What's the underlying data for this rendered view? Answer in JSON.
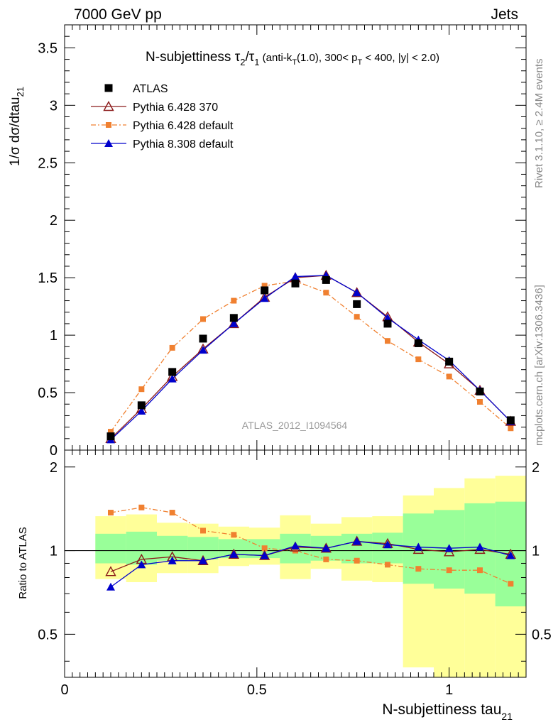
{
  "header": {
    "left": "7000 GeV pp",
    "right": "Jets"
  },
  "side_labels": {
    "rivet": "Rivet 3.1.10, ≥ 2.4M events",
    "mcplots": "mcplots.cern.ch [arXiv:1306.3436]"
  },
  "watermark": "ATLAS_2012_I1094564",
  "chart_data": [
    {
      "type": "scatter",
      "panel": "main",
      "title_main": "N-subjettiness τ",
      "title_sub2": "2",
      "title_slash": "/τ",
      "title_sub1": "1",
      "title_rest_a": " (anti-k",
      "title_sub_t": "T",
      "title_rest_b": "(1.0), 300< p",
      "title_sub_t2": "T",
      "title_rest_c": " < 400, |y| < 2.0)",
      "ylabel": "1/σ dσ/dtau",
      "ylabel_sub": "21",
      "xlim": [
        0,
        1.2
      ],
      "ylim": [
        0,
        3.7
      ],
      "yticks": [
        0,
        0.5,
        1,
        1.5,
        2,
        2.5,
        3,
        3.5
      ],
      "ytick_labels": [
        "0",
        "0.5",
        "1",
        "1.5",
        "2",
        "2.5",
        "3",
        "3.5"
      ],
      "x": [
        0.12,
        0.2,
        0.28,
        0.36,
        0.44,
        0.52,
        0.6,
        0.68,
        0.76,
        0.84,
        0.92,
        1.0,
        1.08,
        1.16
      ],
      "legend_position": "top-left",
      "series": [
        {
          "name": "ATLAS",
          "color": "#000000",
          "marker": "square",
          "values": [
            0.12,
            0.39,
            0.68,
            0.97,
            1.15,
            1.39,
            1.45,
            1.48,
            1.27,
            1.1,
            0.93,
            0.77,
            0.51,
            0.26
          ]
        },
        {
          "name": "Pythia 6.428 370",
          "color": "#8b1a1a",
          "marker": "open-triangle",
          "values": [
            0.1,
            0.36,
            0.64,
            0.88,
            1.1,
            1.33,
            1.5,
            1.52,
            1.37,
            1.16,
            0.94,
            0.75,
            0.52,
            0.25
          ]
        },
        {
          "name": "Pythia 6.428 default",
          "color": "#f08030",
          "marker": "small-square",
          "dashed": true,
          "values": [
            0.16,
            0.53,
            0.89,
            1.14,
            1.3,
            1.43,
            1.47,
            1.37,
            1.16,
            0.95,
            0.79,
            0.64,
            0.42,
            0.19
          ]
        },
        {
          "name": "Pythia 8.308 default",
          "color": "#0000cc",
          "marker": "triangle",
          "values": [
            0.09,
            0.34,
            0.62,
            0.87,
            1.1,
            1.32,
            1.51,
            1.52,
            1.37,
            1.15,
            0.96,
            0.78,
            0.52,
            0.25
          ]
        }
      ]
    },
    {
      "type": "line",
      "panel": "ratio",
      "ylabel": "Ratio to ATLAS",
      "xlabel": "N-subjettiness tau",
      "xlabel_sub": "21",
      "xlim": [
        0,
        1.2
      ],
      "ylim": [
        0.35,
        2.3
      ],
      "log_y": true,
      "yticks_labeled": [
        0.5,
        1,
        2
      ],
      "ytick_labels": [
        "0.5",
        "1",
        "2"
      ],
      "xticks": [
        0,
        0.5,
        1
      ],
      "xtick_labels": [
        "0",
        "0.5",
        "1"
      ],
      "bins": [
        [
          0.08,
          0.16
        ],
        [
          0.16,
          0.24
        ],
        [
          0.24,
          0.32
        ],
        [
          0.32,
          0.4
        ],
        [
          0.4,
          0.48
        ],
        [
          0.48,
          0.56
        ],
        [
          0.56,
          0.64
        ],
        [
          0.64,
          0.72
        ],
        [
          0.72,
          0.8
        ],
        [
          0.8,
          0.88
        ],
        [
          0.88,
          0.96
        ],
        [
          0.96,
          1.04
        ],
        [
          1.04,
          1.12
        ],
        [
          1.12,
          1.2
        ]
      ],
      "band_outer": [
        [
          0.79,
          1.33
        ],
        [
          0.77,
          1.35
        ],
        [
          0.83,
          1.26
        ],
        [
          0.83,
          1.25
        ],
        [
          0.88,
          1.22
        ],
        [
          0.89,
          1.21
        ],
        [
          0.79,
          1.34
        ],
        [
          0.86,
          1.25
        ],
        [
          0.78,
          1.32
        ],
        [
          0.77,
          1.33
        ],
        [
          0.38,
          1.58
        ],
        [
          0.35,
          1.68
        ],
        [
          0.32,
          1.82
        ],
        [
          0.32,
          1.86
        ]
      ],
      "band_inner": [
        [
          0.9,
          1.15
        ],
        [
          0.89,
          1.17
        ],
        [
          0.92,
          1.13
        ],
        [
          0.93,
          1.12
        ],
        [
          0.94,
          1.1
        ],
        [
          0.94,
          1.1
        ],
        [
          0.9,
          1.15
        ],
        [
          0.92,
          1.13
        ],
        [
          0.9,
          1.15
        ],
        [
          0.9,
          1.16
        ],
        [
          0.76,
          1.36
        ],
        [
          0.73,
          1.4
        ],
        [
          0.7,
          1.48
        ],
        [
          0.63,
          1.5
        ]
      ],
      "x": [
        0.12,
        0.2,
        0.28,
        0.36,
        0.44,
        0.52,
        0.6,
        0.68,
        0.76,
        0.84,
        0.92,
        1.0,
        1.08,
        1.16
      ],
      "series": [
        {
          "name": "Pythia 6.428 370",
          "color": "#8b1a1a",
          "marker": "open-triangle",
          "values": [
            0.84,
            0.93,
            0.95,
            0.92,
            0.97,
            0.96,
            1.03,
            1.02,
            1.08,
            1.06,
            1.01,
            0.99,
            1.01,
            0.97
          ]
        },
        {
          "name": "Pythia 6.428 default",
          "color": "#f08030",
          "marker": "small-square",
          "dashed": true,
          "values": [
            1.37,
            1.43,
            1.37,
            1.18,
            1.14,
            1.02,
            1.0,
            0.93,
            0.92,
            0.89,
            0.86,
            0.85,
            0.85,
            0.76
          ]
        },
        {
          "name": "Pythia 8.308 default",
          "color": "#0000cc",
          "marker": "triangle",
          "values": [
            0.74,
            0.89,
            0.92,
            0.92,
            0.97,
            0.96,
            1.04,
            1.02,
            1.08,
            1.05,
            1.03,
            1.02,
            1.03,
            0.96
          ]
        }
      ]
    }
  ]
}
